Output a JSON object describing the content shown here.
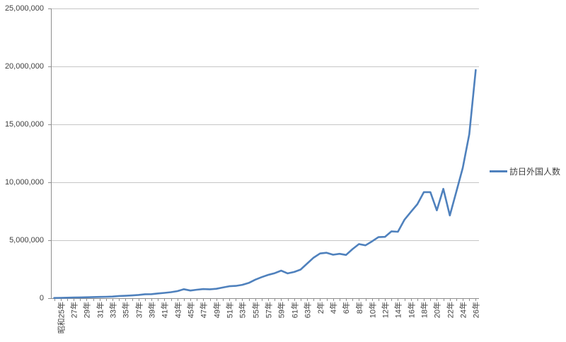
{
  "chart_data": {
    "type": "line",
    "title": "",
    "legend_position": "right",
    "grid": "horizontal",
    "ylim": [
      0,
      25000000
    ],
    "y_axis": {
      "tick_interval": 5000000,
      "tick_labels": [
        "0",
        "5,000,000",
        "10,000,000",
        "15,000,000",
        "20,000,000",
        "25,000,000"
      ]
    },
    "x_axis": {
      "n_points": 66,
      "label_interval": 2,
      "tick_labels": [
        "昭和25年",
        "27年",
        "29年",
        "31年",
        "33年",
        "35年",
        "37年",
        "39年",
        "41年",
        "43年",
        "45年",
        "47年",
        "49年",
        "51年",
        "53年",
        "55年",
        "57年",
        "59年",
        "61年",
        "63年",
        "2年",
        "4年",
        "6年",
        "8年",
        "10年",
        "12年",
        "14年",
        "16年",
        "18年",
        "20年",
        "22年",
        "24年",
        "26年"
      ]
    },
    "series": [
      {
        "name": "訪日外国人数",
        "color": "#4F81BD",
        "values": [
          18000,
          30000,
          45000,
          58000,
          65000,
          80000,
          95000,
          110000,
          122000,
          143000,
          190000,
          210000,
          240000,
          280000,
          343000,
          350000,
          410000,
          460000,
          520000,
          610000,
          775000,
          660000,
          730000,
          785000,
          770000,
          812000,
          920000,
          1030000,
          1060000,
          1150000,
          1320000,
          1600000,
          1820000,
          2010000,
          2160000,
          2380000,
          2140000,
          2260000,
          2470000,
          2990000,
          3500000,
          3860000,
          3920000,
          3750000,
          3830000,
          3730000,
          4240000,
          4670000,
          4560000,
          4900000,
          5270000,
          5290000,
          5770000,
          5730000,
          6760000,
          7450000,
          8110000,
          9150000,
          9150000,
          7580000,
          9440000,
          7140000,
          9170000,
          11250000,
          14150000,
          19690000
        ]
      }
    ],
    "colors": {
      "gridline": "#C6C6C6",
      "axis": "#8E8E8E",
      "text": "#404040",
      "background": "#FFFFFF"
    }
  }
}
